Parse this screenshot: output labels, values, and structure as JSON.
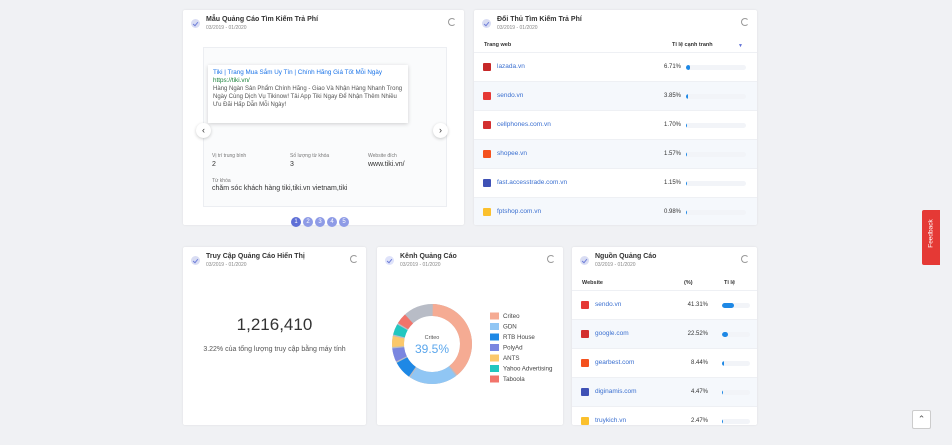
{
  "ad_card": {
    "title": "Mẫu Quảng Cáo Tìm Kiếm Trả Phí",
    "date": "03/2019 - 01/2020",
    "ad": {
      "headline": "Tiki | Trang Mua Sắm Uy Tín | Chính Hãng Giá Tốt Mỗi Ngày",
      "url": "https://tiki.vn/",
      "description": "Hàng Ngàn Sản Phẩm Chính Hãng - Giao Và Nhận Hàng Nhanh Trong Ngày Cùng Dịch Vụ Tikinow! Tải App Tiki Ngay Để Nhận Thêm Nhiều Ưu Đãi Hấp Dẫn Mỗi Ngày!"
    },
    "fields": [
      {
        "label": "Vị trí trung bình",
        "value": "2"
      },
      {
        "label": "Số lượng từ khóa",
        "value": "3"
      },
      {
        "label": "Website đích",
        "value": "www.tiki.vn/"
      }
    ],
    "keyword": {
      "label": "Từ khóa",
      "value": "chăm sóc khách hàng tiki,tiki.vn vietnam,tiki"
    },
    "pages": [
      "1",
      "2",
      "3",
      "4",
      "5"
    ]
  },
  "competitors": {
    "title": "Đối Thủ Tìm Kiếm Trả Phí",
    "date": "03/2019 - 01/2020",
    "headers": [
      "Trang web",
      "Tỉ lệ cạnh tranh"
    ],
    "rows": [
      {
        "site": "lazada.vn",
        "share": {
          "value": 6.71,
          "label": "6.71%"
        }
      },
      {
        "site": "sendo.vn",
        "share": {
          "value": 3.85,
          "label": "3.85%"
        }
      },
      {
        "site": "cellphones.com.vn",
        "share": {
          "value": 1.7,
          "label": "1.70%"
        }
      },
      {
        "site": "shopee.vn",
        "share": {
          "value": 1.57,
          "label": "1.57%"
        }
      },
      {
        "site": "fast.accesstrade.com.vn",
        "share": {
          "value": 1.15,
          "label": "1.15%"
        }
      },
      {
        "site": "fptshop.com.vn",
        "share": {
          "value": 0.98,
          "label": "0.98%"
        }
      }
    ]
  },
  "display": {
    "title": "Truy Cập Quảng Cáo Hiển Thị",
    "date": "03/2019 - 01/2020",
    "total": "1,216,410",
    "note": "3.22% của tổng lượng truy cập bằng máy tính"
  },
  "channels": {
    "title": "Kênh Quảng Cáo",
    "date": "03/2019 - 01/2020",
    "type": "donut",
    "names": [
      "Criteo",
      "GDN",
      "RTB House",
      "PolyAd",
      "ANTS",
      "Yahoo Advertising",
      "Taboola"
    ],
    "values": [
      39.5,
      20,
      8,
      6,
      5,
      5,
      5
    ],
    "value_labels": [
      "39.5%",
      null,
      null,
      null,
      null,
      null,
      null
    ],
    "colors": [
      "#f5ab93",
      "#90c6f4",
      "#1e88e5",
      "#7a86e0",
      "#fbc86b",
      "#21c7c0",
      "#f2746b"
    ]
  },
  "sources": {
    "title": "Nguồn Quảng Cáo",
    "date": "03/2019 - 01/2020",
    "headers": [
      "Website",
      "(%)",
      "Tỉ lệ"
    ],
    "rows": [
      {
        "site": "sendo.vn",
        "share": {
          "value": 41.31,
          "label": "41.31%"
        }
      },
      {
        "site": "google.com",
        "share": {
          "value": 22.52,
          "label": "22.52%"
        }
      },
      {
        "site": "gearbest.com",
        "share": {
          "value": 8.44,
          "label": "8.44%"
        }
      },
      {
        "site": "diginamis.com",
        "share": {
          "value": 4.47,
          "label": "4.47%"
        }
      },
      {
        "site": "truykich.vn",
        "share": {
          "value": 2.47,
          "label": "2.47%"
        }
      }
    ]
  },
  "feedback": "Feedback"
}
